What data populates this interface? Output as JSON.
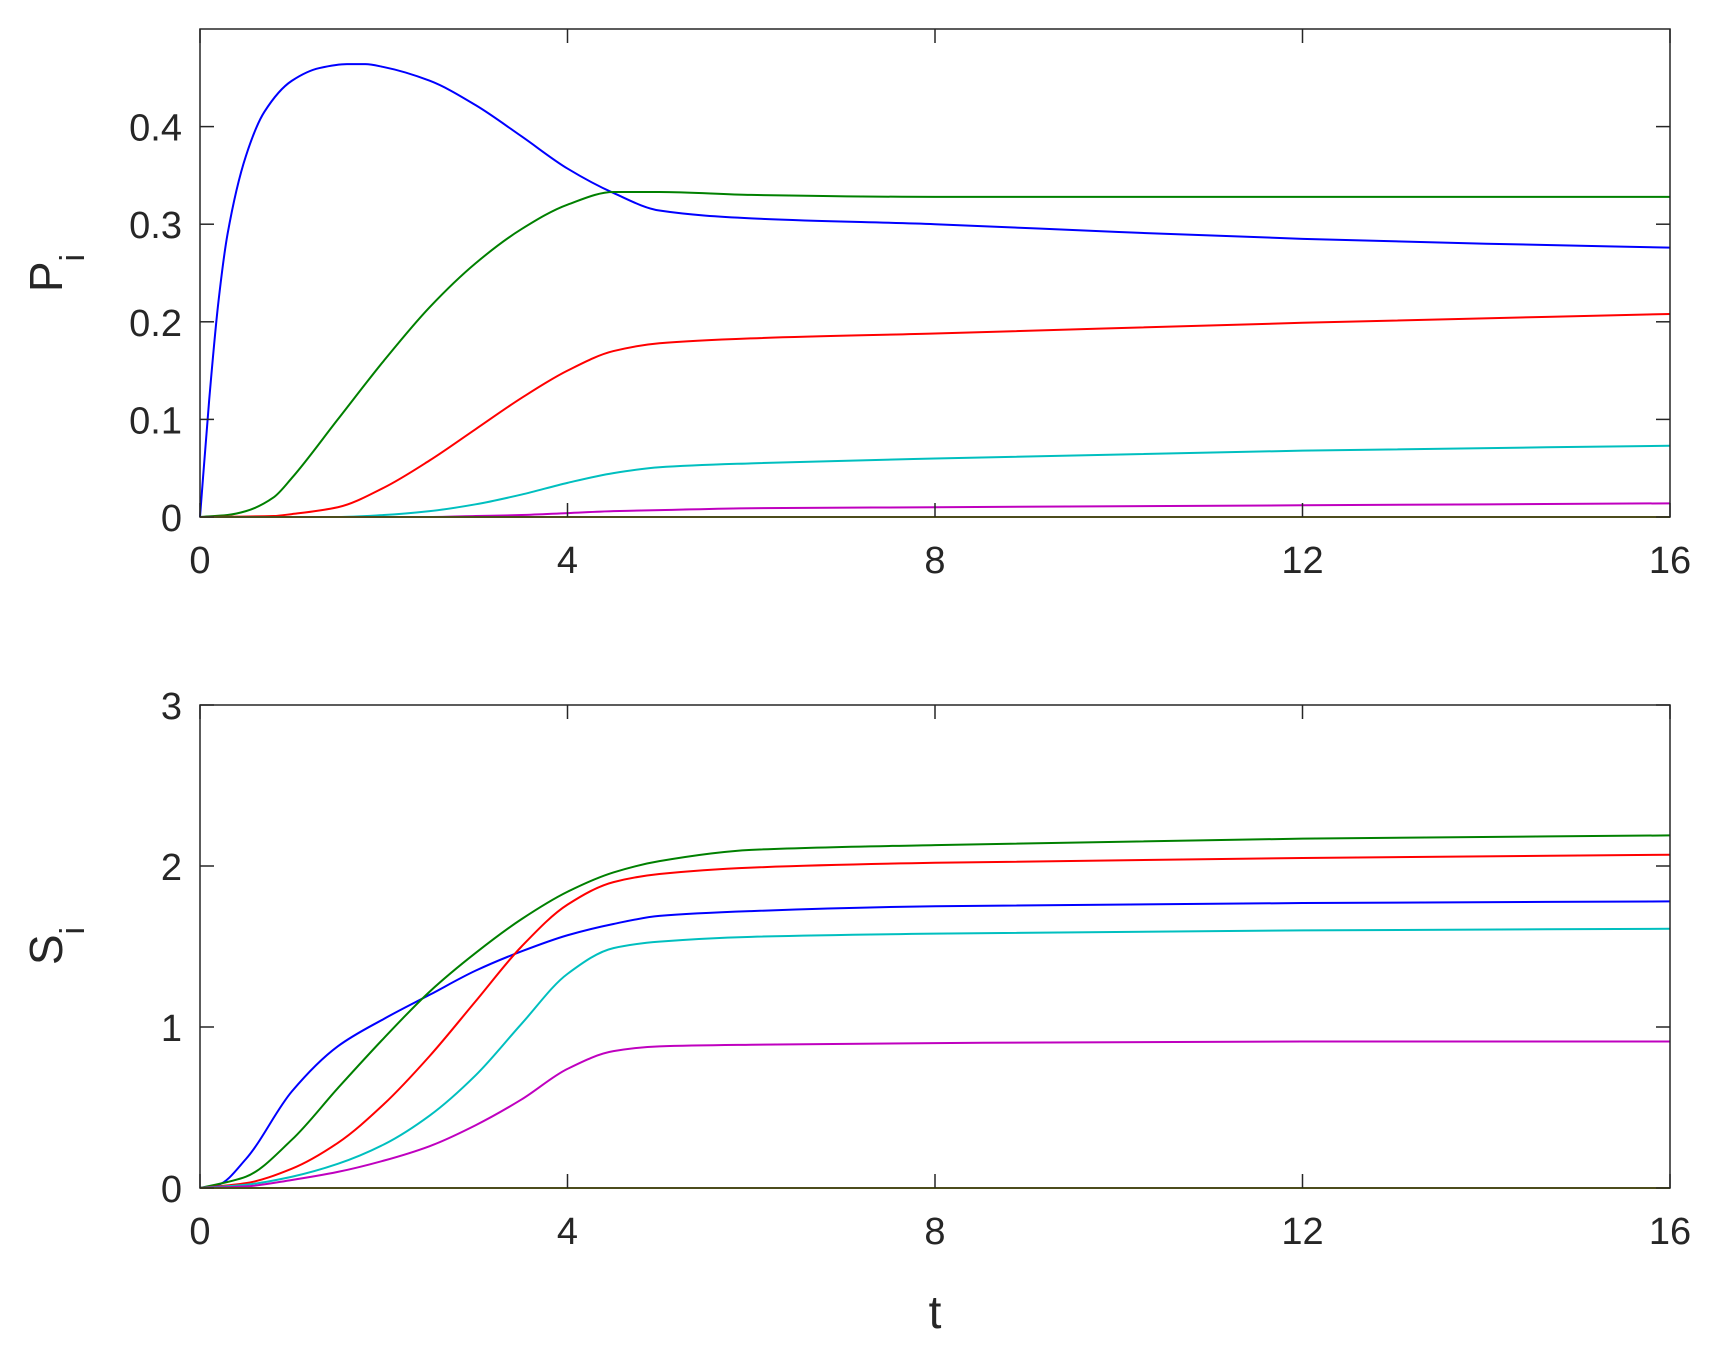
{
  "chart_data": [
    {
      "type": "line",
      "ylabel": "P",
      "ylabel_subscript": "i",
      "xlabel": "",
      "xlim": [
        0,
        16
      ],
      "ylim": [
        0,
        0.5
      ],
      "xticks": [
        0,
        4,
        8,
        12,
        16
      ],
      "xtick_labels": [
        "0",
        "4",
        "8",
        "12",
        "16"
      ],
      "yticks": [
        0,
        0.1,
        0.2,
        0.3,
        0.4
      ],
      "ytick_labels": [
        "0",
        "0.1",
        "0.2",
        "0.3",
        "0.4"
      ],
      "grid": false,
      "series": [
        {
          "color": "#0000ff",
          "x": [
            0,
            0.1,
            0.2,
            0.3,
            0.5,
            0.7,
            1.0,
            1.3,
            1.6,
            1.8,
            2.0,
            2.5,
            3.0,
            3.5,
            4.0,
            4.5,
            5.0,
            6.0,
            8.0,
            10.0,
            12.0,
            14.0,
            16.0
          ],
          "y": [
            0,
            0.12,
            0.22,
            0.29,
            0.37,
            0.415,
            0.447,
            0.46,
            0.464,
            0.464,
            0.461,
            0.447,
            0.422,
            0.39,
            0.357,
            0.332,
            0.314,
            0.306,
            0.3,
            0.292,
            0.285,
            0.28,
            0.276
          ]
        },
        {
          "color": "#008000",
          "x": [
            0,
            0.3,
            0.5,
            0.8,
            1.0,
            1.5,
            2.0,
            2.5,
            3.0,
            3.5,
            4.0,
            4.5,
            5.0,
            6.0,
            8.0,
            12.0,
            16.0
          ],
          "y": [
            0,
            0.002,
            0.006,
            0.02,
            0.04,
            0.1,
            0.16,
            0.215,
            0.26,
            0.295,
            0.32,
            0.333,
            0.333,
            0.33,
            0.328,
            0.328,
            0.328
          ]
        },
        {
          "color": "#ff0000",
          "x": [
            0,
            0.8,
            1.0,
            1.5,
            2.0,
            2.5,
            3.0,
            3.5,
            4.0,
            4.5,
            5.0,
            6.0,
            8.0,
            12.0,
            16.0
          ],
          "y": [
            0,
            0.001,
            0.003,
            0.01,
            0.03,
            0.058,
            0.09,
            0.122,
            0.15,
            0.17,
            0.178,
            0.183,
            0.188,
            0.199,
            0.208
          ]
        },
        {
          "color": "#00bfbf",
          "x": [
            0,
            1.5,
            2.0,
            2.5,
            3.0,
            3.5,
            4.0,
            4.5,
            5.0,
            6.0,
            8.0,
            12.0,
            16.0
          ],
          "y": [
            0,
            0.0,
            0.002,
            0.006,
            0.013,
            0.023,
            0.035,
            0.045,
            0.051,
            0.055,
            0.06,
            0.068,
            0.073
          ]
        },
        {
          "color": "#bf00bf",
          "x": [
            0,
            2.5,
            3.0,
            3.5,
            4.0,
            4.5,
            5.0,
            6.0,
            8.0,
            12.0,
            16.0
          ],
          "y": [
            0,
            0.0,
            0.001,
            0.002,
            0.004,
            0.006,
            0.007,
            0.009,
            0.01,
            0.012,
            0.014
          ]
        },
        {
          "color": "#bfbf00",
          "x": [
            0,
            16
          ],
          "y": [
            0,
            0
          ]
        }
      ]
    },
    {
      "type": "line",
      "ylabel": "S",
      "ylabel_subscript": "i",
      "xlabel": "t",
      "xlim": [
        0,
        16
      ],
      "ylim": [
        0,
        3
      ],
      "xticks": [
        0,
        4,
        8,
        12,
        16
      ],
      "xtick_labels": [
        "0",
        "4",
        "8",
        "12",
        "16"
      ],
      "yticks": [
        0,
        1,
        2,
        3
      ],
      "ytick_labels": [
        "0",
        "1",
        "2",
        "3"
      ],
      "grid": false,
      "series": [
        {
          "color": "#0000ff",
          "x": [
            0,
            0.2,
            0.5,
            1.0,
            1.5,
            2.0,
            2.5,
            3.0,
            3.5,
            4.0,
            4.5,
            5.0,
            6.0,
            8.0,
            12.0,
            16.0
          ],
          "y": [
            0,
            0.02,
            0.18,
            0.6,
            0.88,
            1.05,
            1.2,
            1.35,
            1.47,
            1.57,
            1.64,
            1.69,
            1.72,
            1.75,
            1.77,
            1.78
          ]
        },
        {
          "color": "#008000",
          "x": [
            0,
            0.5,
            1.0,
            1.5,
            2.0,
            2.5,
            3.0,
            3.5,
            4.0,
            4.5,
            5.0,
            6.0,
            8.0,
            12.0,
            16.0
          ],
          "y": [
            0,
            0.07,
            0.3,
            0.62,
            0.93,
            1.22,
            1.46,
            1.67,
            1.84,
            1.96,
            2.03,
            2.1,
            2.13,
            2.17,
            2.19
          ]
        },
        {
          "color": "#ff0000",
          "x": [
            0,
            0.5,
            1.0,
            1.5,
            2.0,
            2.5,
            3.0,
            3.5,
            4.0,
            4.5,
            5.0,
            6.0,
            8.0,
            12.0,
            16.0
          ],
          "y": [
            0,
            0.03,
            0.12,
            0.28,
            0.52,
            0.82,
            1.16,
            1.5,
            1.76,
            1.9,
            1.95,
            1.99,
            2.02,
            2.05,
            2.07
          ]
        },
        {
          "color": "#00bfbf",
          "x": [
            0,
            0.5,
            1.0,
            1.5,
            2.0,
            2.5,
            3.0,
            3.5,
            4.0,
            4.5,
            5.0,
            6.0,
            8.0,
            12.0,
            16.0
          ],
          "y": [
            0,
            0.02,
            0.07,
            0.15,
            0.27,
            0.45,
            0.7,
            1.02,
            1.33,
            1.49,
            1.53,
            1.56,
            1.58,
            1.6,
            1.61
          ]
        },
        {
          "color": "#bf00bf",
          "x": [
            0,
            0.5,
            1.0,
            1.5,
            2.0,
            2.5,
            3.0,
            3.5,
            4.0,
            4.5,
            5.0,
            6.0,
            8.0,
            12.0,
            16.0
          ],
          "y": [
            0,
            0.01,
            0.05,
            0.1,
            0.17,
            0.26,
            0.39,
            0.55,
            0.74,
            0.85,
            0.88,
            0.89,
            0.9,
            0.91,
            0.91
          ]
        },
        {
          "color": "#bfbf00",
          "x": [
            0,
            16
          ],
          "y": [
            0,
            0
          ]
        }
      ]
    }
  ]
}
